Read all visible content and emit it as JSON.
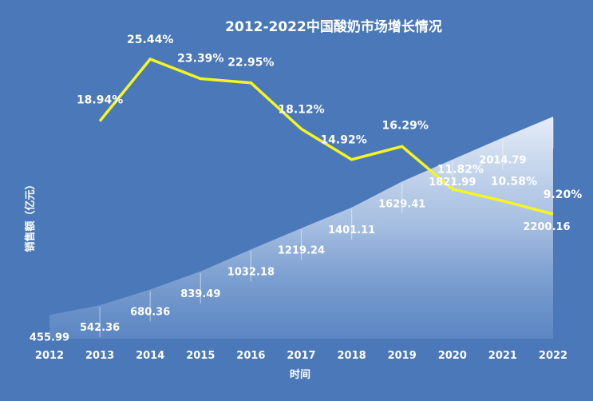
{
  "chart_data": {
    "type": "area",
    "title": "2012-2022中国酸奶市场增长情况",
    "xlabel": "时间",
    "ylabel": "销售额（亿元）",
    "categories": [
      "2012",
      "2013",
      "2014",
      "2015",
      "2016",
      "2017",
      "2018",
      "2019",
      "2020",
      "2021",
      "2022"
    ],
    "series": [
      {
        "values": [
          455.99,
          542.36,
          680.36,
          839.49,
          1032.18,
          1219.24,
          1401.11,
          1629.41,
          1821.99,
          2014.79,
          2200.16
        ],
        "value_labels": [
          "455.99",
          "542.36",
          "680.36",
          "839.49",
          "1032.18",
          "1219.24",
          "1401.11",
          "1629.41",
          "1821.99",
          "2014.79",
          "2200.16"
        ]
      },
      {
        "values": [
          null,
          18.94,
          25.44,
          23.39,
          22.95,
          18.12,
          14.92,
          16.29,
          11.82,
          10.58,
          9.2
        ],
        "value_labels": [
          "",
          "18.94%",
          "25.44%",
          "23.39%",
          "22.95%",
          "18.12%",
          "14.92%",
          "16.29%",
          "11.82%",
          "10.58%",
          "9.20%"
        ]
      }
    ],
    "colors": {
      "background": "#4a78b8",
      "line": "#f5f524",
      "area_top": "#e9f0fa",
      "text": "#ffffff"
    },
    "grid": false,
    "legend": "none"
  }
}
